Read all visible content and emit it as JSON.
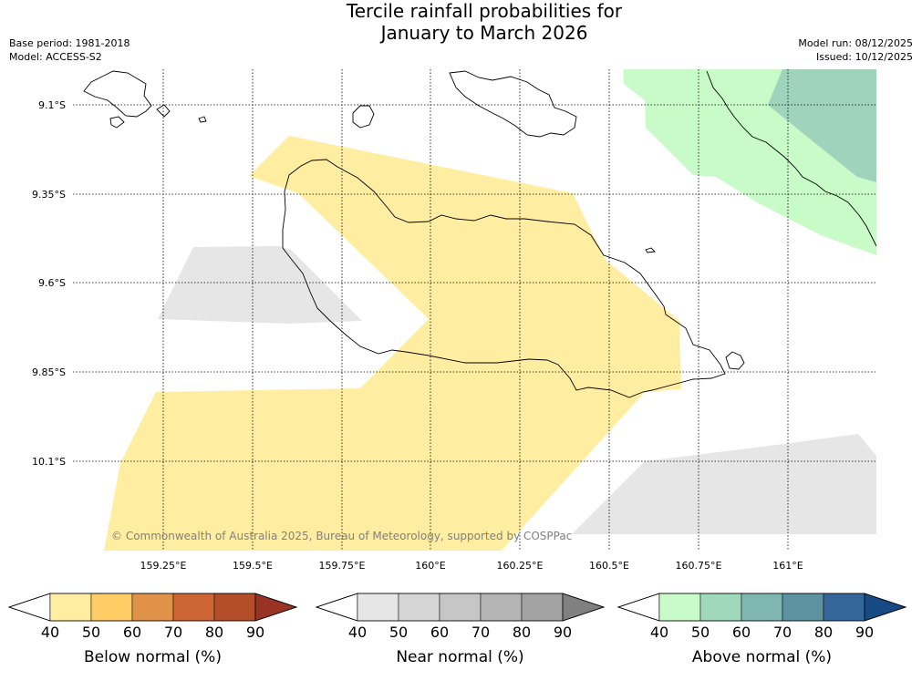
{
  "title_line1": "Tercile rainfall probabilities for",
  "title_line2": "January to March 2026",
  "base_period": "Base period: 1981-2018",
  "model": "Model: ACCESS-S2",
  "model_run": "Model run: 08/12/2025",
  "issued": "Issued: 10/12/2025",
  "copyright": "© Commonwealth of Australia 2025, Bureau of Meteorology, supported by COSPPac",
  "map": {
    "lat_ticks": [
      "9.1°S",
      "9.35°S",
      "9.6°S",
      "9.85°S",
      "10.1°S"
    ],
    "lon_ticks": [
      "159.25°E",
      "159.5°E",
      "159.75°E",
      "160°E",
      "160.25°E",
      "160.5°E",
      "160.75°E",
      "161°E"
    ],
    "regions": [
      {
        "category": "Below normal",
        "probability_range": "40-50%"
      },
      {
        "category": "Near normal",
        "probability_range": "40-50%"
      },
      {
        "category": "Above normal",
        "probability_range": "40-50%"
      },
      {
        "category": "Above normal",
        "probability_range": "50-60%"
      }
    ]
  },
  "colorbars": [
    {
      "title": "Below normal (%)",
      "ticks": [
        "40",
        "50",
        "60",
        "70",
        "80",
        "90"
      ],
      "colors": [
        "#ffeea1",
        "#ffcc66",
        "#e09248",
        "#cd6535",
        "#b34d2a",
        "#993425"
      ]
    },
    {
      "title": "Near normal (%)",
      "ticks": [
        "40",
        "50",
        "60",
        "70",
        "80",
        "90"
      ],
      "colors": [
        "#e6e6e6",
        "#d6d6d6",
        "#c6c6c6",
        "#b4b4b4",
        "#a2a2a2",
        "#808080"
      ]
    },
    {
      "title": "Above normal (%)",
      "ticks": [
        "40",
        "50",
        "60",
        "70",
        "80",
        "90"
      ],
      "colors": [
        "#c8fbc8",
        "#a0d8bb",
        "#80b6b0",
        "#5d93a1",
        "#336699",
        "#174a85"
      ]
    }
  ]
}
